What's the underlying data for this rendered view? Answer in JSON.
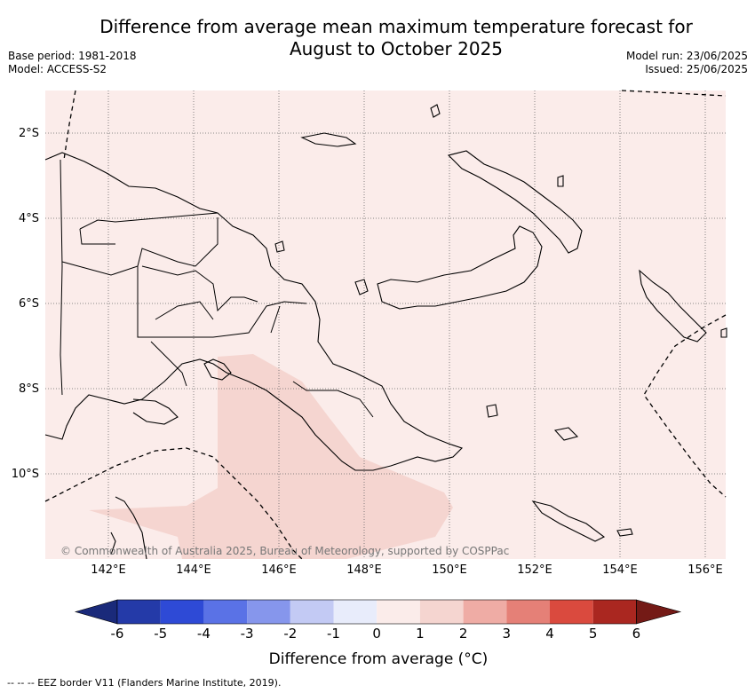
{
  "title_line1": "Difference from average mean maximum temperature forecast for",
  "title_line2": "August to October 2025",
  "base_period": "Base period: 1981-2018",
  "model": "Model: ACCESS-S2",
  "model_run": "Model run: 23/06/2025",
  "issued": "Issued: 25/06/2025",
  "copyright": "© Commonwealth of Australia 2025, Bureau of Meteorology, supported by COSPPac",
  "lat_labels": [
    "2°S",
    "4°S",
    "6°S",
    "8°S",
    "10°S"
  ],
  "lon_labels": [
    "142°E",
    "144°E",
    "146°E",
    "148°E",
    "150°E",
    "152°E",
    "154°E",
    "156°E"
  ],
  "colorbar": {
    "title": "Difference from average (°C)",
    "ticks": [
      "-6",
      "-5",
      "-4",
      "-3",
      "-2",
      "-1",
      "0",
      "1",
      "2",
      "3",
      "4",
      "5",
      "6"
    ],
    "colors": [
      "#1a2a7a",
      "#243aa8",
      "#2e4ad6",
      "#5a72e6",
      "#8696ec",
      "#c3caf4",
      "#e8ecfb",
      "#fbecea",
      "#f5d5d0",
      "#efaca5",
      "#e58077",
      "#da4a3e",
      "#aa2720",
      "#741a16"
    ]
  },
  "footnote": "--  --  -- EEZ border V11 (Flanders Marine Institute, 2019)."
}
